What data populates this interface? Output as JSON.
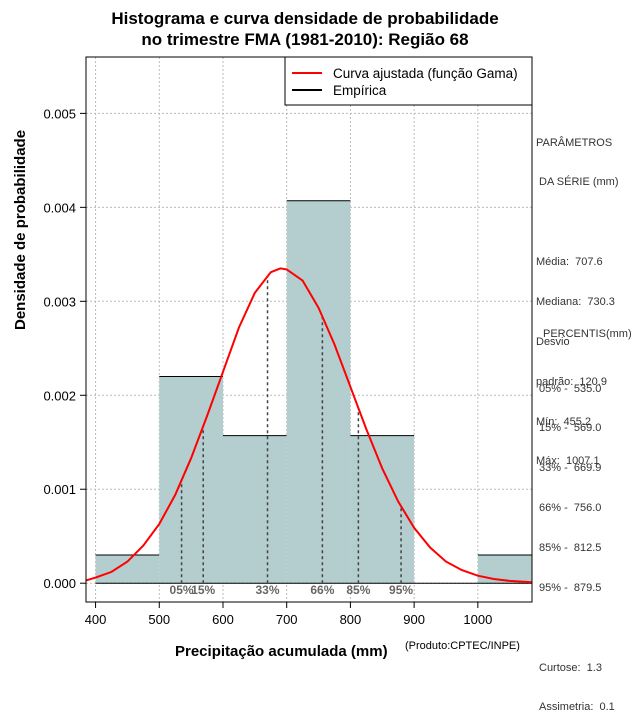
{
  "title_line1": "Histograma e curva densidade de probabilidade",
  "title_line2": "no trimestre FMA (1981-2010): Região 68",
  "footer": "(Produto:CPTEC/INPE)",
  "colors": {
    "bar_fill": "#b4cecf",
    "curve": "#ff0000",
    "grid": "#bbbbbb"
  },
  "legend": [
    "Curva ajustada (função Gama)",
    "Empírica"
  ],
  "params": {
    "header1": "PARÂMETROS",
    "header2": " DA SÉRIE (mm)",
    "lines": [
      "Média:  707.6",
      "Mediana:  730.3",
      "Desvio",
      "padrão:  120.9",
      "Mín:  455.2",
      "Máx:  1007.1"
    ]
  },
  "percentis": {
    "header": "PERCENTIS(mm)",
    "lines": [
      "05% -  535.0",
      "15% -  569.0",
      "33% -  669.9",
      "66% -  756.0",
      "85% -  812.5",
      "95% -  879.5"
    ]
  },
  "stats": [
    "Curtose:  1.3",
    "Assimetria:  0.1"
  ],
  "chart_data": {
    "type": "bar",
    "title": "Histograma e curva densidade de probabilidade no trimestre FMA (1981-2010): Região 68",
    "xlabel": "Precipitação acumulada (mm)",
    "ylabel": "Densidade de probabilidade",
    "xlim": [
      385,
      1085
    ],
    "ylim": [
      -0.0002,
      0.0056
    ],
    "xticks": [
      400,
      500,
      600,
      700,
      800,
      900,
      1000
    ],
    "yticks": [
      0.0,
      0.001,
      0.002,
      0.003,
      0.004,
      0.005
    ],
    "ytick_labels": [
      "0.000",
      "0.001",
      "0.002",
      "0.003",
      "0.004",
      "0.005"
    ],
    "bins": [
      {
        "from": 400,
        "to": 500,
        "density": 0.0003
      },
      {
        "from": 500,
        "to": 600,
        "density": 0.0022
      },
      {
        "from": 600,
        "to": 700,
        "density": 0.00157
      },
      {
        "from": 700,
        "to": 800,
        "density": 0.00407
      },
      {
        "from": 800,
        "to": 900,
        "density": 0.00157
      },
      {
        "from": 900,
        "to": 1000,
        "density": 0.0
      },
      {
        "from": 1000,
        "to": 1100,
        "density": 0.0003
      }
    ],
    "curve": {
      "name": "Curva ajustada (função Gama)",
      "x": [
        385,
        400,
        425,
        450,
        475,
        500,
        525,
        550,
        575,
        600,
        625,
        650,
        675,
        690,
        700,
        725,
        750,
        775,
        800,
        825,
        850,
        875,
        900,
        925,
        950,
        975,
        1000,
        1025,
        1050,
        1085
      ],
      "y": [
        3e-05,
        6e-05,
        0.00012,
        0.00023,
        0.0004,
        0.00063,
        0.00094,
        0.00133,
        0.00178,
        0.00225,
        0.00272,
        0.00309,
        0.00331,
        0.00335,
        0.00334,
        0.00322,
        0.00293,
        0.00254,
        0.00209,
        0.00164,
        0.00122,
        0.00087,
        0.00059,
        0.00038,
        0.00023,
        0.00014,
        8e-05,
        4.5e-05,
        2.5e-05,
        1e-05
      ]
    },
    "percentile_lines": [
      {
        "label": "05%",
        "x": 535.0
      },
      {
        "label": "15%",
        "x": 569.0
      },
      {
        "label": "33%",
        "x": 669.9
      },
      {
        "label": "66%",
        "x": 756.0
      },
      {
        "label": "85%",
        "x": 812.5
      },
      {
        "label": "95%",
        "x": 879.5
      }
    ],
    "legend_position": "top-right"
  }
}
